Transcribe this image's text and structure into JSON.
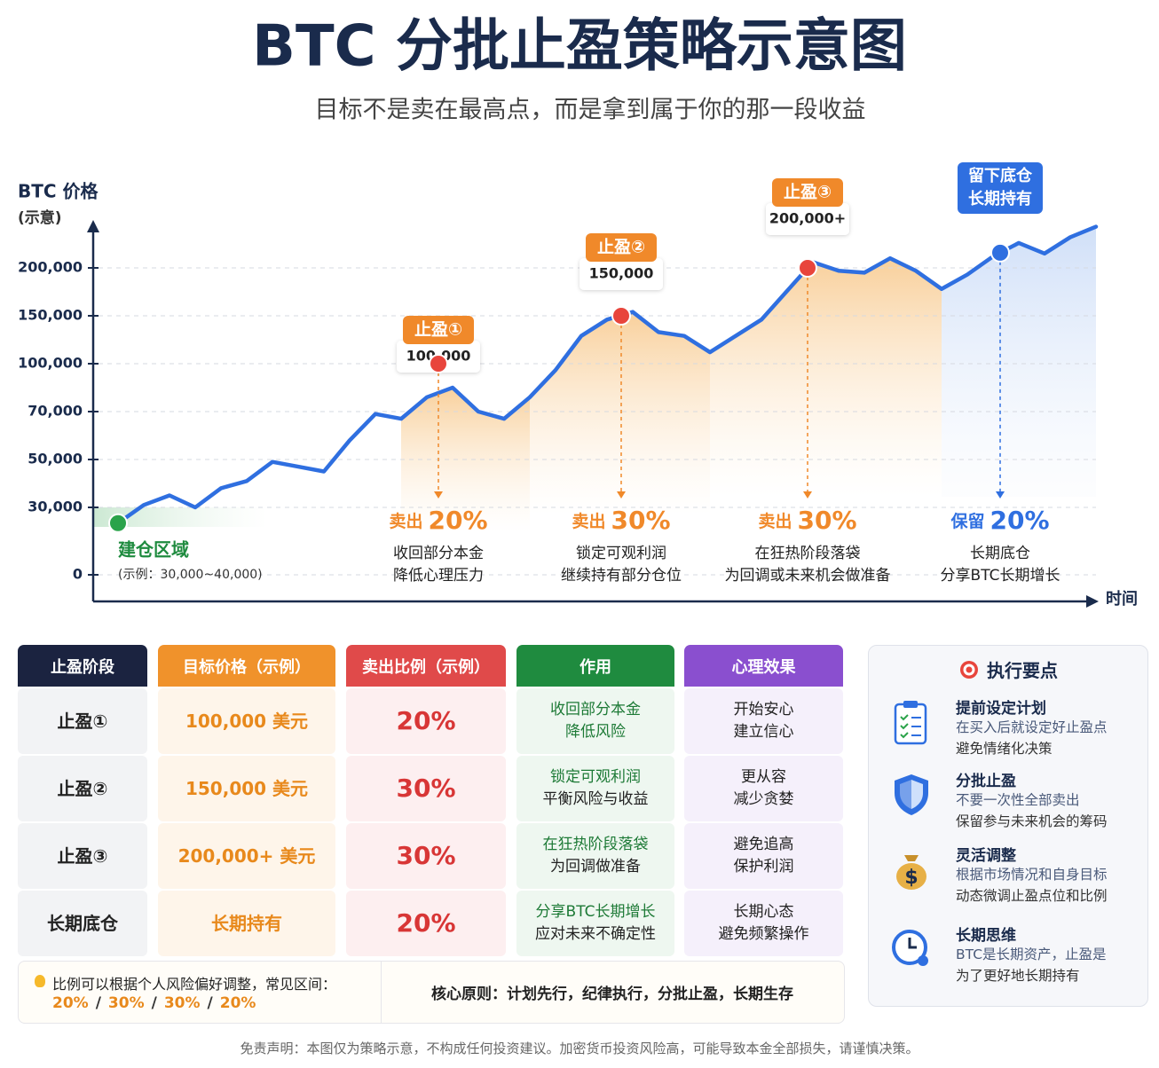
{
  "header": {
    "title": "BTC 分批止盈策略示意图",
    "subtitle": "目标不是卖在最高点，而是拿到属于你的那一段收益"
  },
  "chart_data": {
    "type": "line",
    "ylabel": "BTC 价格",
    "ylabel_note": "(示意)",
    "xlabel": "时间",
    "color": "#2f6fe0",
    "grid": true,
    "values": [
      23000,
      31000,
      35000,
      30000,
      38000,
      41000,
      49000,
      47000,
      45000,
      58000,
      69000,
      67000,
      79000,
      85000,
      70000,
      67000,
      79000,
      96000,
      129000,
      146000,
      154000,
      133000,
      129000,
      112000,
      129000,
      146000,
      176000,
      206000,
      197000,
      195000,
      210000,
      197000,
      178000,
      193000,
      212000,
      226000,
      215000,
      232000,
      243000
    ],
    "ylim": [
      0,
      250000
    ],
    "yticks": [
      0,
      {
        "value": 30000,
        "label": "30,000"
      },
      {
        "value": 50000,
        "label": "50,000"
      },
      {
        "value": 70000,
        "label": "70,000"
      },
      {
        "value": 100000,
        "label": "100,000"
      },
      {
        "value": 150000,
        "label": "150,000"
      },
      {
        "value": 200000,
        "label": "200,000"
      }
    ],
    "entry_zone": {
      "label": "建仓区域",
      "note": "(示例：30,000~40,000)"
    },
    "annotations": [
      {
        "label": "止盈①",
        "price": {
          "value": 100000,
          "label": "100,000"
        },
        "action": "卖出",
        "percent": "20%",
        "desc": [
          "收回部分本金",
          "降低心理压力"
        ]
      },
      {
        "label": "止盈②",
        "price": {
          "value": 150000,
          "label": "150,000"
        },
        "action": "卖出",
        "percent": "30%",
        "desc": [
          "锁定可观利润",
          "继续持有部分仓位"
        ]
      },
      {
        "label": "止盈③",
        "price": {
          "value": 200000,
          "label": "200,000+"
        },
        "action": "卖出",
        "percent": "30%",
        "desc": [
          "在狂热阶段落袋",
          "为回调或未来机会做准备"
        ]
      },
      {
        "label": [
          "留下底仓",
          "长期持有"
        ],
        "action": "保留",
        "percent": "20%",
        "desc": [
          "长期底仓",
          "分享BTC长期增长"
        ]
      }
    ]
  },
  "table": {
    "header": [
      "止盈阶段",
      "目标价格（示例）",
      "卖出比例（示例）",
      "作用",
      "心理效果"
    ],
    "rows": [
      [
        "止盈①",
        "100,000 美元",
        "20%",
        [
          "收回部分本金",
          "降低风险"
        ],
        [
          "开始安心",
          "建立信心"
        ]
      ],
      [
        "止盈②",
        "150,000 美元",
        "30%",
        [
          "锁定可观利润",
          "平衡风险与收益"
        ],
        [
          "更从容",
          "减少贪婪"
        ]
      ],
      [
        "止盈③",
        "200,000+ 美元",
        "30%",
        [
          "在狂热阶段落袋",
          "为回调做准备"
        ],
        [
          "避免追高",
          "保护利润"
        ]
      ],
      [
        "长期底仓",
        "长期持有",
        "20%",
        [
          "分享BTC长期增长",
          "应对未来不确定性"
        ],
        [
          "长期心态",
          "避免频繁操作"
        ]
      ]
    ]
  },
  "tips": {
    "lead": "比例可以根据个人风险偏好调整，常见区间：",
    "ratios": [
      "20%",
      "30%",
      "30%",
      "20%"
    ],
    "separator": "/",
    "principle": "核心原则：计划先行，纪律执行，分批止盈，长期生存"
  },
  "key_points": {
    "title": "执行要点",
    "items": [
      {
        "title": "提前设定计划",
        "lines": [
          "在买入后就设定好止盈点",
          "避免情绪化决策"
        ]
      },
      {
        "title": "分批止盈",
        "lines": [
          "不要一次性全部卖出",
          "保留参与未来机会的筹码"
        ]
      },
      {
        "title": "灵活调整",
        "lines": [
          "根据市场情况和自身目标",
          "动态微调止盈点位和比例"
        ]
      },
      {
        "title": "长期思维",
        "lines": [
          "BTC是长期资产，止盈是",
          "为了更好地长期持有"
        ]
      }
    ]
  },
  "footer": {
    "disclaimer": "免责声明：本图仅为策略示意，不构成任何投资建议。加密货币投资风险高，可能导致本金全部损失，请谨慎决策。"
  }
}
